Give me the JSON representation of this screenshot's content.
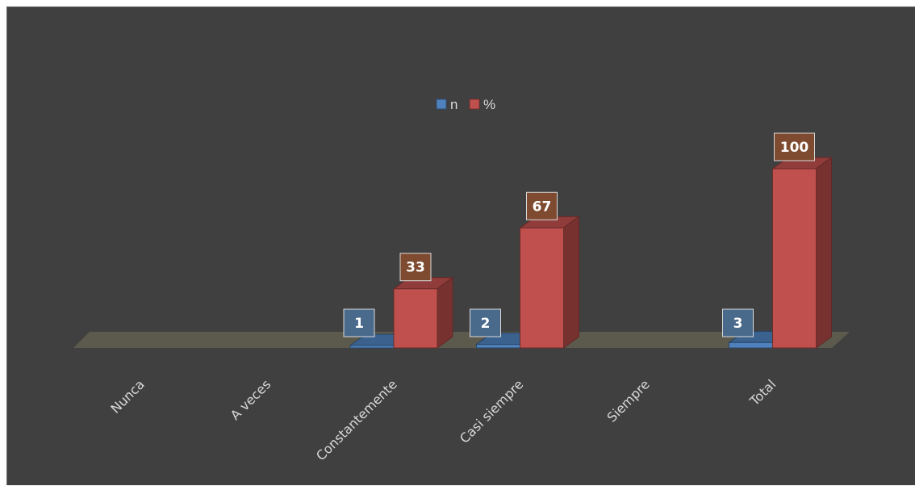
{
  "chart_data": {
    "type": "bar",
    "style": "3d-clustered-column",
    "categories": [
      "Nunca",
      "A veces",
      "Constantemente",
      "Casi siempre",
      "Siempre",
      "Total"
    ],
    "series": [
      {
        "name": "n",
        "values": [
          0,
          0,
          1,
          2,
          0,
          3
        ],
        "color": "#4f81bd"
      },
      {
        "name": "%",
        "values": [
          0,
          0,
          33,
          67,
          0,
          100
        ],
        "color": "#c0504d"
      }
    ],
    "data_labels": [
      [
        "",
        "",
        "1",
        "2",
        "",
        "3"
      ],
      [
        "",
        "",
        "33",
        "67",
        "",
        "100"
      ]
    ],
    "ylim": [
      0,
      100
    ],
    "legend_position": "top-center",
    "background_color": "#404040",
    "floor_color": "#5c5a4c",
    "label_box_colors": [
      "#4a6a8c",
      "#7e4b30"
    ],
    "grid": false
  }
}
